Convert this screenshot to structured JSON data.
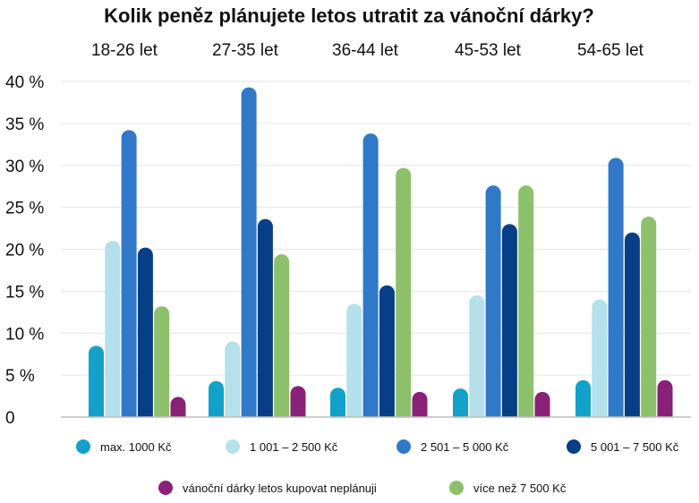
{
  "chart_data": {
    "type": "bar",
    "title": "Kolik peněz plánujete letos utratit za vánoční dárky?",
    "categories": [
      "18-26 let",
      "27-35 let",
      "36-44 let",
      "45-53 let",
      "54-65 let"
    ],
    "ylim": [
      0,
      40
    ],
    "y_ticks": [
      {
        "value": 0,
        "label": "0"
      },
      {
        "value": 5,
        "label": "5 %"
      },
      {
        "value": 10,
        "label": "10 %"
      },
      {
        "value": 15,
        "label": "15 %"
      },
      {
        "value": 20,
        "label": "20 %"
      },
      {
        "value": 25,
        "label": "25 %"
      },
      {
        "value": 30,
        "label": "30 %"
      },
      {
        "value": 35,
        "label": "35 %"
      },
      {
        "value": 40,
        "label": "40 %"
      }
    ],
    "grid": true,
    "legend_position": "bottom",
    "series": [
      {
        "name": "max. 1000 Kč",
        "color": "#12a1c8",
        "values": [
          8.5,
          4.3,
          3.5,
          3.4,
          4.4
        ]
      },
      {
        "name": "1 001 – 2 500 Kč",
        "color": "#b3e0eb",
        "values": [
          21,
          9,
          13.5,
          14.5,
          14
        ]
      },
      {
        "name": "2 501 – 5 000 Kč",
        "color": "#3079c8",
        "values": [
          34.2,
          39.3,
          33.8,
          27.6,
          30.9
        ]
      },
      {
        "name": "5 001 – 7 500 Kč",
        "color": "#073f86",
        "values": [
          20.2,
          23.6,
          15.7,
          23,
          22
        ]
      },
      {
        "name": "více než 7 500 Kč",
        "color": "#8dc06a",
        "values": [
          13.2,
          19.4,
          29.7,
          27.6,
          23.9
        ]
      },
      {
        "name": "vánoční dárky letos kupovat neplánuji",
        "color": "#8a2178",
        "values": [
          2.4,
          3.7,
          3,
          3,
          4.4
        ]
      }
    ],
    "legend_order": [
      0,
      1,
      2,
      3,
      5,
      4
    ]
  }
}
